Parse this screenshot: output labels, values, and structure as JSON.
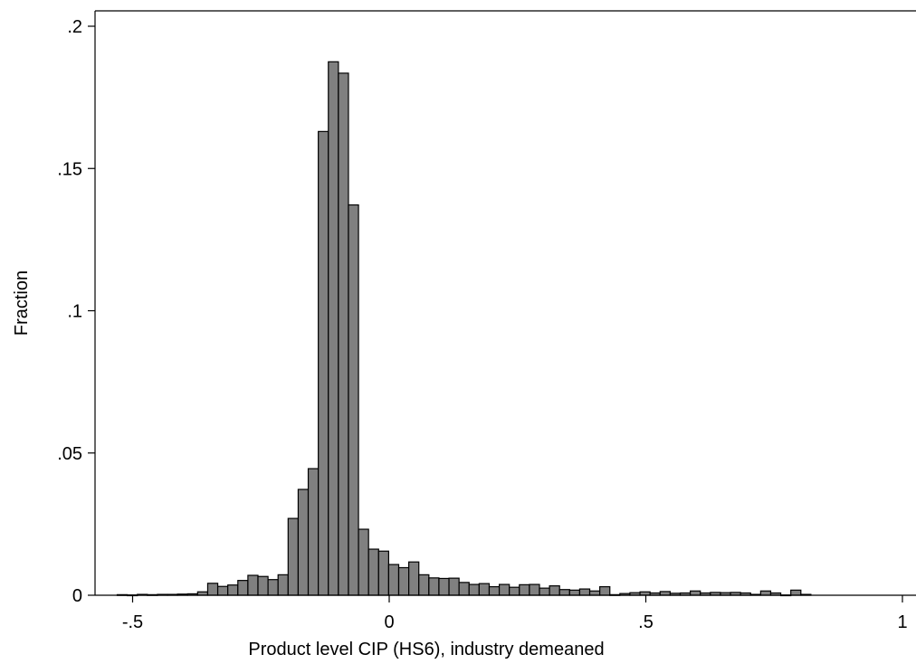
{
  "chart_data": {
    "type": "bar",
    "title": "",
    "xlabel": "Product level CIP (HS6), industry demeaned",
    "ylabel": "Fraction",
    "xlim": [
      -0.55,
      1.01
    ],
    "ylim": [
      0,
      0.2
    ],
    "grid": false,
    "x_ticks": [
      {
        "value": -0.5,
        "label": "-.5"
      },
      {
        "value": 0,
        "label": "0"
      },
      {
        "value": 0.5,
        "label": ".5"
      },
      {
        "value": 1,
        "label": "1"
      }
    ],
    "y_ticks": [
      {
        "value": 0,
        "label": "0"
      },
      {
        "value": 0.05,
        "label": ".05"
      },
      {
        "value": 0.1,
        "label": ".1"
      },
      {
        "value": 0.15,
        "label": ".15"
      },
      {
        "value": 0.2,
        "label": ".2"
      }
    ],
    "bin_width": 0.01959,
    "bins_start": -0.53,
    "series": [
      {
        "values": [
          0.0002,
          0.0001,
          0.0003,
          0.0002,
          0.0003,
          0.0003,
          0.0004,
          0.0005,
          0.0012,
          0.0042,
          0.0031,
          0.0036,
          0.0052,
          0.007,
          0.0066,
          0.0055,
          0.0072,
          0.027,
          0.0372,
          0.0445,
          0.163,
          0.1875,
          0.1835,
          0.1372,
          0.0232,
          0.0162,
          0.0155,
          0.0108,
          0.0097,
          0.0117,
          0.0072,
          0.0061,
          0.0059,
          0.006,
          0.0045,
          0.0038,
          0.0041,
          0.003,
          0.0038,
          0.0028,
          0.0037,
          0.0038,
          0.0025,
          0.0033,
          0.002,
          0.0018,
          0.0022,
          0.0015,
          0.003,
          0.0002,
          0.0006,
          0.0009,
          0.0012,
          0.0008,
          0.0013,
          0.0007,
          0.0008,
          0.0015,
          0.0008,
          0.001,
          0.0009,
          0.001,
          0.0008,
          0.0003,
          0.0015,
          0.0008,
          0.0001,
          0.0018,
          0.0003
        ]
      }
    ]
  }
}
